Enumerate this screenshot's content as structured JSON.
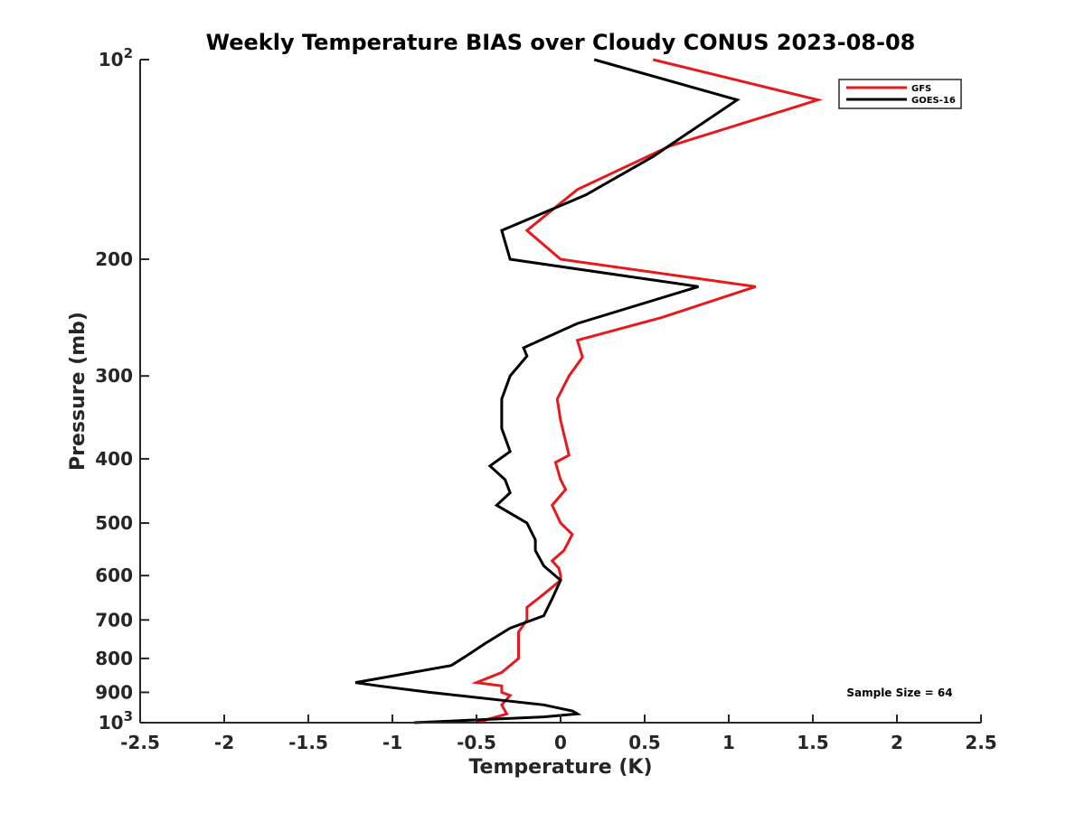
{
  "chart_data": {
    "type": "line",
    "title": "Weekly Temperature BIAS over Cloudy CONUS 2023-08-08",
    "xlabel": "Temperature (K)",
    "ylabel": "Pressure (mb)",
    "xlim": [
      -2.5,
      2.5
    ],
    "ylim": [
      100,
      1000
    ],
    "y_scale": "log",
    "y_reversed": true,
    "grid": false,
    "legend_position": "top-right",
    "x_ticks": [
      "-2.5",
      "-2",
      "-1.5",
      "-1",
      "-0.5",
      "0",
      "0.5",
      "1",
      "1.5",
      "2",
      "2.5"
    ],
    "x_tick_values": [
      -2.5,
      -2,
      -1.5,
      -1,
      -0.5,
      0,
      0.5,
      1,
      1.5,
      2,
      2.5
    ],
    "y_ticks": [
      {
        "value": 100,
        "base": "10",
        "exp": "2"
      },
      {
        "value": 200,
        "label": "200"
      },
      {
        "value": 300,
        "label": "300"
      },
      {
        "value": 400,
        "label": "400"
      },
      {
        "value": 500,
        "label": "500"
      },
      {
        "value": 600,
        "label": "600"
      },
      {
        "value": 700,
        "label": "700"
      },
      {
        "value": 800,
        "label": "800"
      },
      {
        "value": 900,
        "label": "900"
      },
      {
        "value": 1000,
        "base": "10",
        "exp": "3"
      }
    ],
    "annotation": "Sample Size = 64",
    "series": [
      {
        "name": "GFS",
        "color": "#e8191c",
        "points": [
          [
            0.55,
            100
          ],
          [
            1.53,
            115
          ],
          [
            0.65,
            135
          ],
          [
            0.1,
            157
          ],
          [
            -0.2,
            181
          ],
          [
            0.0,
            200
          ],
          [
            1.16,
            220
          ],
          [
            0.6,
            245
          ],
          [
            0.1,
            265
          ],
          [
            0.13,
            281
          ],
          [
            0.05,
            300
          ],
          [
            -0.02,
            325
          ],
          [
            0.0,
            350
          ],
          [
            0.05,
            395
          ],
          [
            -0.03,
            405
          ],
          [
            0.0,
            430
          ],
          [
            0.03,
            445
          ],
          [
            -0.05,
            470
          ],
          [
            0.0,
            500
          ],
          [
            0.07,
            520
          ],
          [
            0.02,
            550
          ],
          [
            -0.05,
            570
          ],
          [
            -0.01,
            585
          ],
          [
            0.0,
            600
          ],
          [
            0.0,
            610
          ],
          [
            -0.1,
            640
          ],
          [
            -0.2,
            670
          ],
          [
            -0.2,
            700
          ],
          [
            -0.25,
            730
          ],
          [
            -0.25,
            760
          ],
          [
            -0.25,
            800
          ],
          [
            -0.35,
            840
          ],
          [
            -0.5,
            870
          ],
          [
            -0.35,
            880
          ],
          [
            -0.35,
            900
          ],
          [
            -0.3,
            910
          ],
          [
            -0.35,
            940
          ],
          [
            -0.32,
            970
          ],
          [
            -0.5,
            1000
          ]
        ]
      },
      {
        "name": "GOES-16",
        "color": "#000000",
        "points": [
          [
            0.2,
            100
          ],
          [
            1.05,
            115
          ],
          [
            0.55,
            140
          ],
          [
            0.15,
            160
          ],
          [
            -0.35,
            181
          ],
          [
            -0.3,
            200
          ],
          [
            0.82,
            220
          ],
          [
            0.1,
            250
          ],
          [
            -0.22,
            272
          ],
          [
            -0.2,
            280
          ],
          [
            -0.3,
            300
          ],
          [
            -0.35,
            325
          ],
          [
            -0.35,
            360
          ],
          [
            -0.3,
            390
          ],
          [
            -0.42,
            410
          ],
          [
            -0.33,
            430
          ],
          [
            -0.3,
            450
          ],
          [
            -0.38,
            470
          ],
          [
            -0.2,
            500
          ],
          [
            -0.15,
            530
          ],
          [
            -0.15,
            550
          ],
          [
            -0.1,
            580
          ],
          [
            0.0,
            610
          ],
          [
            -0.05,
            650
          ],
          [
            -0.1,
            690
          ],
          [
            -0.3,
            720
          ],
          [
            -0.45,
            760
          ],
          [
            -0.55,
            790
          ],
          [
            -0.65,
            820
          ],
          [
            -1.22,
            870
          ],
          [
            -1.08,
            880
          ],
          [
            -0.78,
            900
          ],
          [
            -0.1,
            940
          ],
          [
            0.07,
            960
          ],
          [
            0.1,
            970
          ],
          [
            -0.1,
            980
          ],
          [
            -0.87,
            1000
          ]
        ]
      }
    ]
  }
}
